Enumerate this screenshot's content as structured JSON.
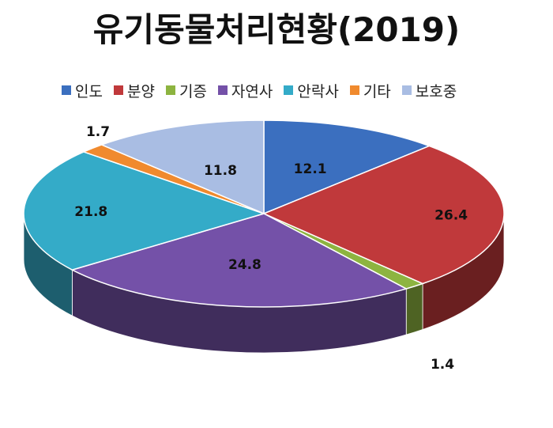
{
  "title": "유기동물처리현황(2019)",
  "chart_data": {
    "type": "pie",
    "title": "유기동물처리현황(2019)",
    "legend_position": "top",
    "slices": [
      {
        "label": "인도",
        "value": 12.1,
        "color": "#3B6FBF"
      },
      {
        "label": "분양",
        "value": 26.4,
        "color": "#C0393B"
      },
      {
        "label": "기증",
        "value": 1.4,
        "color": "#8DB440"
      },
      {
        "label": "자연사",
        "value": 24.8,
        "color": "#7451A8"
      },
      {
        "label": "안락사",
        "value": 21.8,
        "color": "#34ABC8"
      },
      {
        "label": "기타",
        "value": 1.7,
        "color": "#F08A2E"
      },
      {
        "label": "보호중",
        "value": 11.8,
        "color": "#A9BDE3"
      }
    ]
  }
}
